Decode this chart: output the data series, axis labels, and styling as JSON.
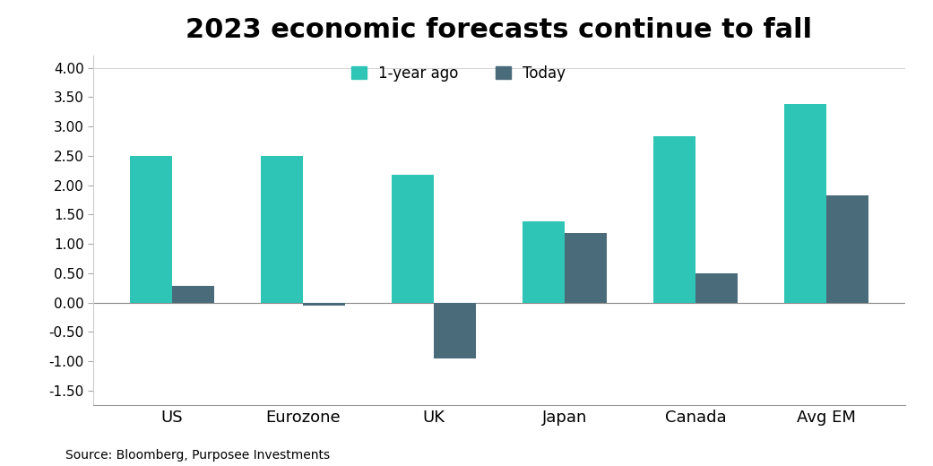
{
  "title": "2023 economic forecasts continue to fall",
  "categories": [
    "US",
    "Eurozone",
    "UK",
    "Japan",
    "Canada",
    "Avg EM"
  ],
  "series": {
    "1-year ago": [
      2.5,
      2.5,
      2.18,
      1.38,
      2.83,
      3.38
    ],
    "Today": [
      0.28,
      -0.05,
      -0.95,
      1.18,
      0.5,
      1.83
    ]
  },
  "colors": {
    "1-year ago": "#2EC4B6",
    "Today": "#4A6B7A"
  },
  "ylim": [
    -1.75,
    4.2
  ],
  "yticks": [
    -1.5,
    -1.0,
    -0.5,
    0.0,
    0.5,
    1.0,
    1.5,
    2.0,
    2.5,
    3.0,
    3.5,
    4.0
  ],
  "ytick_labels": [
    "-1.50",
    "-1.00",
    "-0.50",
    "0.00",
    "0.50",
    "1.00",
    "1.50",
    "2.00",
    "2.50",
    "3.00",
    "3.50",
    "4.00"
  ],
  "source_text": "Source: Bloomberg, Purposee Investments",
  "bar_width": 0.32,
  "background_color": "#FFFFFF",
  "title_fontsize": 22,
  "axis_fontsize": 11,
  "legend_fontsize": 12,
  "source_fontsize": 10
}
